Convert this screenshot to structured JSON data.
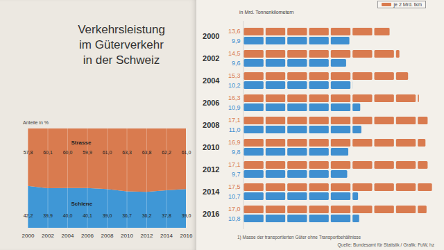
{
  "chart_data": [
    {
      "type": "area",
      "title": "Verkehrsleistung\nim Güterverkehr\nin der Schweiz",
      "ylabel": "Anteile in %",
      "stacked": true,
      "data_labels": true,
      "tick_labels": "x",
      "x": [
        2000,
        2002,
        2004,
        2006,
        2008,
        2010,
        2012,
        2014,
        2016
      ],
      "xlim": [
        2000,
        2016
      ],
      "xticks": [
        2000,
        2002,
        2004,
        2006,
        2008,
        2010,
        2012,
        2014,
        2016
      ],
      "ylim": [
        0,
        100
      ],
      "series": [
        {
          "name": "Schiene",
          "color": "#3f97d6",
          "values": [
            42.2,
            39.9,
            40.0,
            40.1,
            39.0,
            36.7,
            36.2,
            37.8,
            39.0
          ],
          "value_labels": [
            "42,2",
            "39,9",
            "40,0",
            "40,1",
            "39,0",
            "36,7",
            "36,2",
            "37,8",
            "39,0"
          ]
        },
        {
          "name": "Strasse",
          "color": "#d97b4f",
          "values": [
            57.8,
            60.1,
            60.0,
            59.9,
            61.0,
            63.3,
            63.8,
            62.2,
            61.0
          ],
          "value_labels": [
            "57,8",
            "60,1",
            "60,0",
            "59,9",
            "61,0",
            "63,3",
            "63,8",
            "62,2",
            "61,0"
          ]
        }
      ]
    },
    {
      "type": "bar",
      "orientation": "horizontal",
      "xlabel": "in Mrd. Tonnenkilometern",
      "legend_text": "je 2 Mrd. tkm",
      "icon_value": 2,
      "data_labels": true,
      "tick_labels": "y",
      "categories": [
        "2000",
        "2002",
        "2004",
        "2006",
        "2008",
        "2010",
        "2012",
        "2014",
        "2016"
      ],
      "xlim": [
        0,
        18
      ],
      "series": [
        {
          "color": "#d97b4f",
          "values": [
            13.6,
            14.5,
            15.3,
            16.3,
            17.1,
            16.9,
            17.1,
            17.5,
            17.0
          ],
          "value_labels": [
            "13,6",
            "14,5",
            "15,3",
            "16,3",
            "17,1",
            "16,9",
            "17,1",
            "17,5",
            "17,0"
          ]
        },
        {
          "color": "#3f8fd0",
          "values": [
            9.9,
            9.6,
            10.2,
            10.9,
            11.0,
            9.8,
            9.7,
            10.7,
            10.8
          ],
          "value_labels": [
            "9,9",
            "9,6",
            "10,2",
            "10,9",
            "11,0",
            "9,8",
            "9,7",
            "10,7",
            "10,8"
          ]
        }
      ],
      "notes": [
        "1) Masse der transportierten Güter ohne Transportbehältnisse"
      ],
      "source": "Quelle: Bundesamt für Statistik / Grafik: FuW, hz"
    }
  ]
}
